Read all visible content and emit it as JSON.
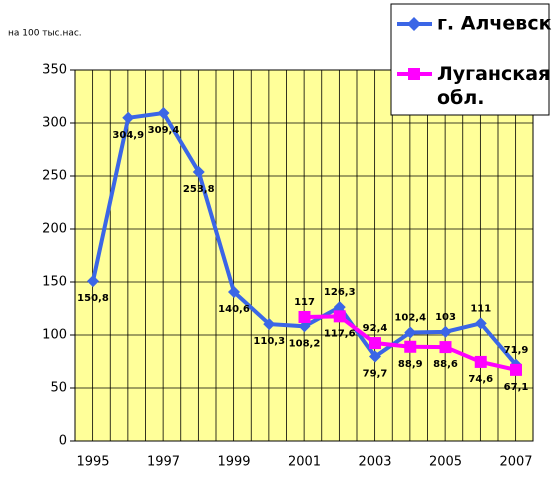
{
  "chart_data": {
    "type": "line",
    "subtitle": "на 100 тыс.нас.",
    "categories": [
      "1995",
      null,
      "1997",
      null,
      "1999",
      null,
      "2001",
      null,
      "2003",
      null,
      "2005",
      null,
      "2007"
    ],
    "series": [
      {
        "name": "г. Алчевск",
        "color": "#3b66e6",
        "values": [
          150.8,
          304.9,
          309.4,
          253.8,
          140.6,
          110.3,
          108.2,
          126.3,
          79.7,
          102.4,
          103,
          111,
          71.9
        ],
        "value_labels": [
          "150,8",
          "304,9",
          "309,4",
          "253,8",
          "140,6",
          "110,3",
          "108,2",
          "126,3",
          "79,7",
          "102,4",
          "103",
          "111",
          "71,9"
        ]
      },
      {
        "name": "Луганская обл.",
        "color": "#ff00ff",
        "values": [
          null,
          null,
          null,
          null,
          null,
          null,
          117,
          117.6,
          92.4,
          88.9,
          88.6,
          74.6,
          67.1
        ],
        "value_labels": [
          null,
          null,
          null,
          null,
          null,
          null,
          "117",
          "117,6",
          "92,4",
          "88,9",
          "88,6",
          "74,6",
          "67,1"
        ]
      }
    ],
    "ylim": [
      0,
      350
    ],
    "yticks": [
      0,
      50,
      100,
      150,
      200,
      250,
      300,
      350
    ],
    "grid": true
  }
}
